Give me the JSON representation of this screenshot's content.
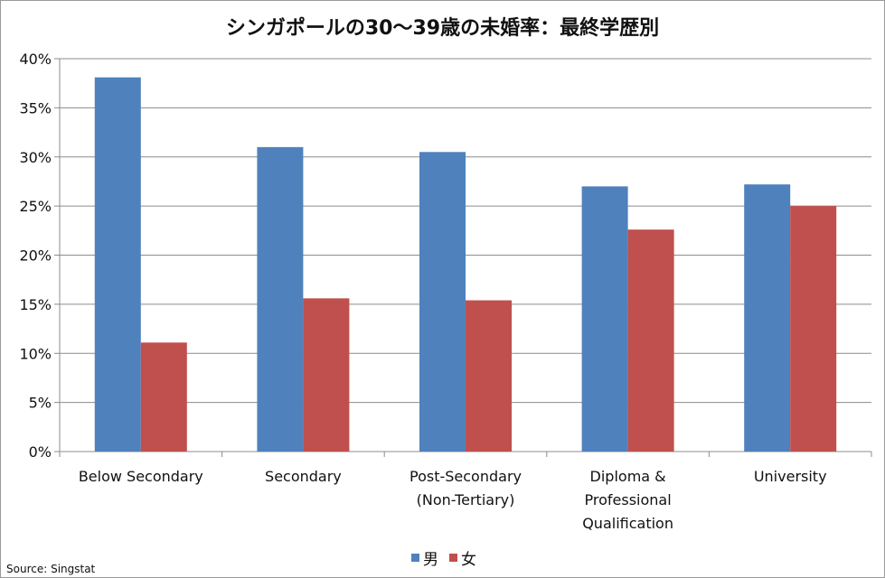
{
  "chart_data": {
    "type": "bar",
    "title": "シンガポールの30～39歳の未婚率：最終学歴別",
    "categories": [
      [
        "Below Secondary"
      ],
      [
        "Secondary"
      ],
      [
        "Post-Secondary",
        "(Non-Tertiary)"
      ],
      [
        "Diploma &",
        "Professional",
        "Qualification"
      ],
      [
        "University"
      ]
    ],
    "series": [
      {
        "name": "男",
        "color": "#4f81bd",
        "values": [
          38.1,
          31.0,
          30.5,
          27.0,
          27.2
        ]
      },
      {
        "name": "女",
        "color": "#c0504d",
        "values": [
          11.1,
          15.6,
          15.4,
          22.6,
          25.0
        ]
      }
    ],
    "ylim": [
      0,
      40
    ],
    "yticks": [
      "0%",
      "5%",
      "10%",
      "15%",
      "20%",
      "25%",
      "30%",
      "35%",
      "40%"
    ],
    "grid": true,
    "legend": "bottom"
  },
  "source": "Source: Singstat"
}
